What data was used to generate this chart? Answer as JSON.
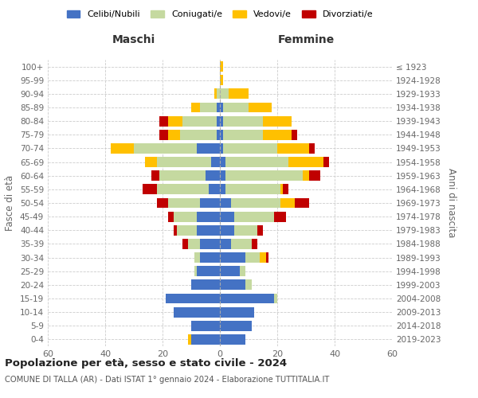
{
  "age_groups": [
    "100+",
    "95-99",
    "90-94",
    "85-89",
    "80-84",
    "75-79",
    "70-74",
    "65-69",
    "60-64",
    "55-59",
    "50-54",
    "45-49",
    "40-44",
    "35-39",
    "30-34",
    "25-29",
    "20-24",
    "15-19",
    "10-14",
    "5-9",
    "0-4"
  ],
  "birth_years": [
    "≤ 1923",
    "1924-1928",
    "1929-1933",
    "1934-1938",
    "1939-1943",
    "1944-1948",
    "1949-1953",
    "1954-1958",
    "1959-1963",
    "1964-1968",
    "1969-1973",
    "1974-1978",
    "1979-1983",
    "1984-1988",
    "1989-1993",
    "1994-1998",
    "1999-2003",
    "2004-2008",
    "2009-2013",
    "2014-2018",
    "2019-2023"
  ],
  "colors": {
    "celibi": "#4472c4",
    "coniugati": "#c5d9a0",
    "vedovi": "#ffc000",
    "divorziati": "#c00000"
  },
  "males": {
    "celibi": [
      0,
      0,
      0,
      1,
      1,
      1,
      8,
      3,
      5,
      4,
      7,
      8,
      8,
      7,
      7,
      8,
      10,
      19,
      16,
      10,
      10
    ],
    "coniugati": [
      0,
      0,
      1,
      6,
      12,
      13,
      22,
      19,
      16,
      18,
      11,
      8,
      7,
      4,
      2,
      1,
      0,
      0,
      0,
      0,
      0
    ],
    "vedovi": [
      0,
      0,
      1,
      3,
      5,
      4,
      8,
      4,
      0,
      0,
      0,
      0,
      0,
      0,
      0,
      0,
      0,
      0,
      0,
      0,
      1
    ],
    "divorziati": [
      0,
      0,
      0,
      0,
      3,
      3,
      0,
      0,
      3,
      5,
      4,
      2,
      1,
      2,
      0,
      0,
      0,
      0,
      0,
      0,
      0
    ]
  },
  "females": {
    "celibi": [
      0,
      0,
      0,
      1,
      1,
      1,
      1,
      2,
      2,
      2,
      4,
      5,
      5,
      4,
      9,
      7,
      9,
      19,
      12,
      11,
      9
    ],
    "coniugati": [
      0,
      0,
      3,
      9,
      14,
      14,
      19,
      22,
      27,
      19,
      17,
      14,
      8,
      7,
      5,
      2,
      2,
      1,
      0,
      0,
      0
    ],
    "vedovi": [
      1,
      1,
      7,
      8,
      10,
      10,
      11,
      12,
      2,
      1,
      5,
      0,
      0,
      0,
      2,
      0,
      0,
      0,
      0,
      0,
      0
    ],
    "divorziati": [
      0,
      0,
      0,
      0,
      0,
      2,
      2,
      2,
      4,
      2,
      5,
      4,
      2,
      2,
      1,
      0,
      0,
      0,
      0,
      0,
      0
    ]
  },
  "title_bold": "Popolazione per età, sesso e stato civile - 2024",
  "subtitle": "COMUNE DI TALLA (AR) - Dati ISTAT 1° gennaio 2024 - Elaborazione TUTTITALIA.IT",
  "xlabel_left": "Maschi",
  "xlabel_right": "Femmine",
  "ylabel_left": "Fasce di età",
  "ylabel_right": "Anni di nascita",
  "xlim": 60,
  "legend_labels": [
    "Celibi/Nubili",
    "Coniugati/e",
    "Vedovi/e",
    "Divorziati/e"
  ],
  "background_color": "#ffffff",
  "grid_color": "#cccccc"
}
